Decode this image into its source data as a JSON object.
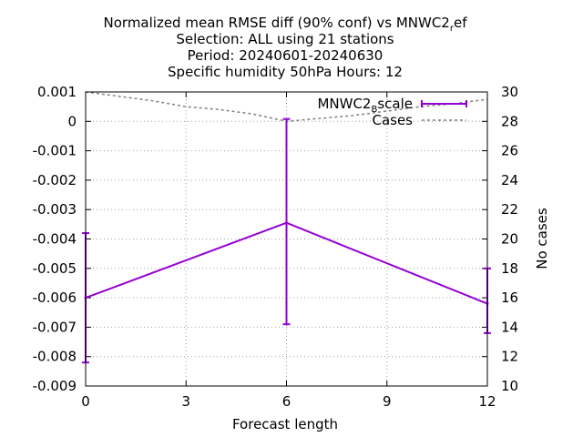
{
  "chart_data": {
    "type": "line",
    "title_lines": [
      "Normalized mean RMSE diff (90% conf) vs MNWC2_ref",
      "Selection: ALL using    21 stations",
      "Period: 20240601-20240630",
      "Specific humidity 50hPa   Hours: 12"
    ],
    "xlabel": "Forecast length",
    "ylabel": "",
    "y2label": "No cases",
    "xlim": [
      0,
      12
    ],
    "ylim": [
      -0.009,
      0.001
    ],
    "y2lim": [
      10,
      30
    ],
    "x_ticks": [
      "0",
      "3",
      "6",
      "9",
      "12"
    ],
    "y_ticks": [
      "0.001",
      "0",
      "-0.001",
      "-0.002",
      "-0.003",
      "-0.004",
      "-0.005",
      "-0.006",
      "-0.007",
      "-0.008",
      "-0.009"
    ],
    "y2_ticks": [
      "30",
      "28",
      "26",
      "24",
      "22",
      "20",
      "18",
      "16",
      "14",
      "12",
      "10"
    ],
    "grid": true,
    "legend_position": "top-right",
    "series": [
      {
        "name": "MNWC2_Bscale",
        "axis": "y",
        "color": "#9400d3",
        "x": [
          0,
          6,
          12
        ],
        "y": [
          -0.006,
          -0.00345,
          -0.0062
        ],
        "err_low": [
          -0.0082,
          -0.0069,
          -0.0072
        ],
        "err_high": [
          -0.0038,
          8e-05,
          -0.005
        ]
      },
      {
        "name": "Cases",
        "axis": "y2",
        "color": "#808080",
        "style": "dashed",
        "x": [
          0,
          1,
          2,
          3,
          4,
          5,
          6,
          7,
          8,
          9,
          10,
          11,
          12
        ],
        "y": [
          30,
          29.7,
          29.4,
          29.0,
          28.8,
          28.5,
          28.0,
          28.2,
          28.4,
          28.7,
          29.0,
          29.2,
          29.5
        ]
      }
    ]
  }
}
